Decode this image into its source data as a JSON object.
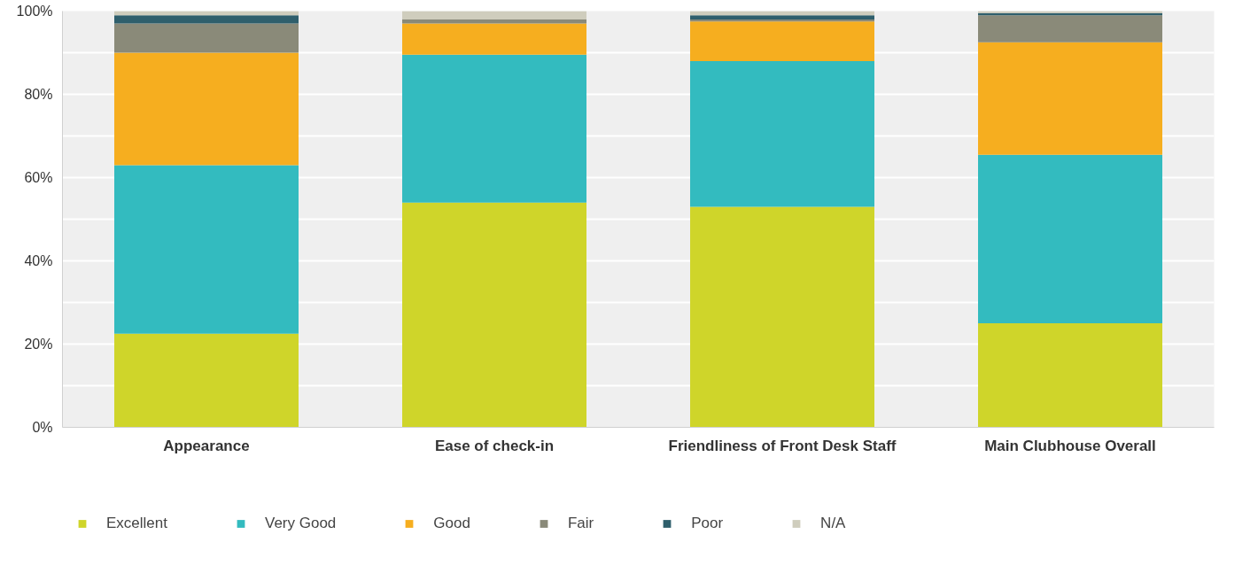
{
  "chart_data": {
    "type": "bar",
    "stacked": true,
    "categories": [
      "Appearance",
      "Ease of check-in",
      "Friendliness of Front Desk Staff",
      "Main Clubhouse Overall"
    ],
    "series": [
      {
        "name": "Excellent",
        "color": "#cfd52a",
        "values": [
          22.5,
          54,
          53,
          25
        ]
      },
      {
        "name": "Very Good",
        "color": "#33bbbf",
        "values": [
          40.5,
          35.5,
          35,
          40.5
        ]
      },
      {
        "name": "Good",
        "color": "#f6ae1f",
        "values": [
          27,
          7.5,
          9.5,
          27
        ]
      },
      {
        "name": "Fair",
        "color": "#8a8a79",
        "values": [
          7,
          1,
          0.5,
          6.5
        ]
      },
      {
        "name": "Poor",
        "color": "#2f5f6c",
        "values": [
          2,
          0,
          1,
          0.5
        ]
      },
      {
        "name": "N/A",
        "color": "#cfcdbd",
        "values": [
          1,
          2,
          1,
          0.5
        ]
      }
    ],
    "ylim": [
      0,
      100
    ],
    "yticks": [
      {
        "value": 0,
        "label": "0%"
      },
      {
        "value": 20,
        "label": "20%"
      },
      {
        "value": 40,
        "label": "40%"
      },
      {
        "value": 60,
        "label": "60%"
      },
      {
        "value": 80,
        "label": "80%"
      },
      {
        "value": 100,
        "label": "100%"
      }
    ],
    "grid": "y",
    "legend": "bottom"
  }
}
